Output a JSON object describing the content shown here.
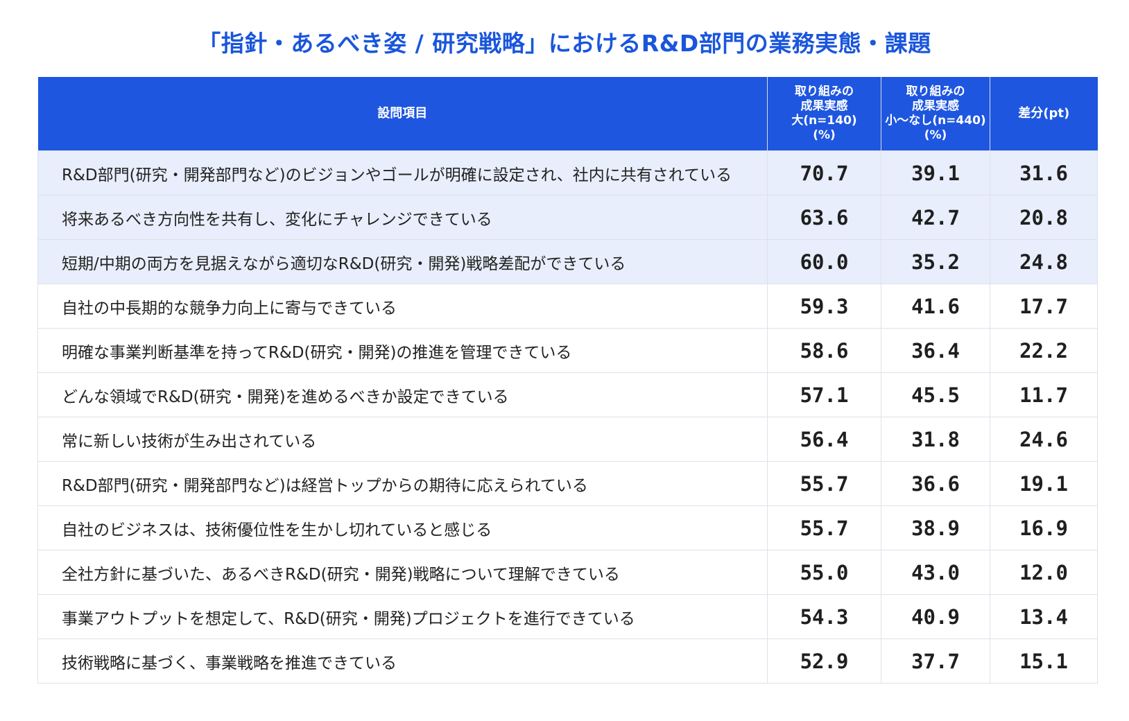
{
  "title": "「指針・あるべき姿 / 研究戦略」におけるR&D部門の業務実態・課題",
  "chart_data": {
    "type": "table",
    "title": "「指針・あるべき姿 / 研究戦略」におけるR&D部門の業務実態・課題",
    "columns": [
      "設問項目",
      "取り組みの\n成果実感\n大(n=140)\n(%)",
      "取り組みの\n成果実感\n小～なし(n=440)\n(%)",
      "差分(pt)"
    ],
    "highlighted_rows": [
      0,
      1,
      2
    ],
    "colors": {
      "title": "#1a56db",
      "header_bg": "#1e56e0",
      "highlight_bg": "#e8eefb"
    },
    "rows": [
      {
        "item": "R&D部門(研究・開発部門など)のビジョンやゴールが明確に設定され、社内に共有されている",
        "a": "70.7",
        "b": "39.1",
        "diff": "31.6"
      },
      {
        "item": "将来あるべき方向性を共有し、変化にチャレンジできている",
        "a": "63.6",
        "b": "42.7",
        "diff": "20.8"
      },
      {
        "item": "短期/中期の両方を見据えながら適切なR&D(研究・開発)戦略差配ができている",
        "a": "60.0",
        "b": "35.2",
        "diff": "24.8"
      },
      {
        "item": "自社の中長期的な競争力向上に寄与できている",
        "a": "59.3",
        "b": "41.6",
        "diff": "17.7"
      },
      {
        "item": "明確な事業判断基準を持ってR&D(研究・開発)の推進を管理できている",
        "a": "58.6",
        "b": "36.4",
        "diff": "22.2"
      },
      {
        "item": "どんな領域でR&D(研究・開発)を進めるべきか設定できている",
        "a": "57.1",
        "b": "45.5",
        "diff": "11.7"
      },
      {
        "item": "常に新しい技術が生み出されている",
        "a": "56.4",
        "b": "31.8",
        "diff": "24.6"
      },
      {
        "item": "R&D部門(研究・開発部門など)は経営トップからの期待に応えられている",
        "a": "55.7",
        "b": "36.6",
        "diff": "19.1"
      },
      {
        "item": "自社のビジネスは、技術優位性を生かし切れていると感じる",
        "a": "55.7",
        "b": "38.9",
        "diff": "16.9"
      },
      {
        "item": "全社方針に基づいた、あるべきR&D(研究・開発)戦略について理解できている",
        "a": "55.0",
        "b": "43.0",
        "diff": "12.0"
      },
      {
        "item": "事業アウトプットを想定して、R&D(研究・開発)プロジェクトを進行できている",
        "a": "54.3",
        "b": "40.9",
        "diff": "13.4"
      },
      {
        "item": "技術戦略に基づく、事業戦略を推進できている",
        "a": "52.9",
        "b": "37.7",
        "diff": "15.1"
      }
    ]
  }
}
